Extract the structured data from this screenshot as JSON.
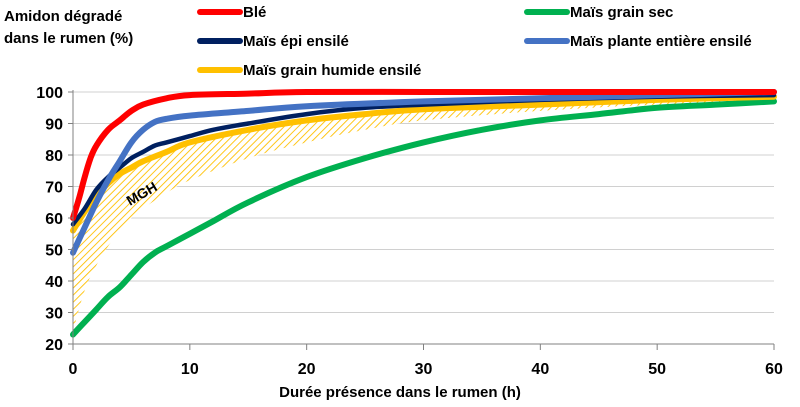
{
  "chart_data": {
    "type": "line",
    "ylabel_line1": "Amidon dégradé",
    "ylabel_line2": "dans le rumen  (%)",
    "xlabel": "Durée présence dans le rumen (h)",
    "xlim": [
      0,
      60
    ],
    "ylim": [
      20,
      100
    ],
    "xticks": [
      0,
      10,
      20,
      30,
      40,
      50,
      60
    ],
    "yticks": [
      20,
      30,
      40,
      50,
      60,
      70,
      80,
      90,
      100
    ],
    "grid": "horizontal",
    "legend_position": "top",
    "annotation": "MGH",
    "series": [
      {
        "name": "Blé",
        "color": "#ff0000",
        "x": [
          0,
          0.5,
          1,
          1.5,
          2,
          3,
          4,
          5,
          6,
          8,
          10,
          15,
          20,
          30,
          40,
          50,
          60
        ],
        "y": [
          60,
          66,
          73,
          79,
          83,
          88,
          91,
          94,
          96,
          98,
          99,
          99.5,
          100,
          100,
          100,
          100,
          100
        ]
      },
      {
        "name": "Maïs grain sec",
        "color": "#00b050",
        "x": [
          0,
          1,
          2,
          3,
          4,
          5,
          6,
          7,
          8,
          10,
          12,
          15,
          20,
          25,
          30,
          35,
          40,
          45,
          50,
          55,
          60
        ],
        "y": [
          23,
          27,
          31,
          35,
          38,
          42,
          46,
          49,
          51,
          55,
          59,
          65,
          73,
          79,
          84,
          88,
          91,
          93,
          95,
          96,
          97
        ]
      },
      {
        "name": "Maïs épi ensilé",
        "color": "#002060",
        "x": [
          0,
          1,
          2,
          3,
          4,
          5,
          6,
          7,
          8,
          10,
          12,
          15,
          20,
          25,
          30,
          40,
          50,
          60
        ],
        "y": [
          58,
          63,
          69,
          73,
          76,
          79,
          81,
          83,
          84,
          86,
          88,
          90,
          93,
          95,
          96,
          97.5,
          98.5,
          99
        ]
      },
      {
        "name": "Maïs grain humide ensilé",
        "color": "#ffc000",
        "x": [
          0,
          1,
          2,
          3,
          4,
          5,
          6,
          8,
          10,
          15,
          20,
          25,
          30,
          40,
          50,
          60
        ],
        "y": [
          56,
          62,
          67,
          71,
          74,
          76,
          78,
          81,
          84,
          88,
          91,
          93,
          94.5,
          96,
          97.5,
          98.5
        ]
      },
      {
        "name": "Maïs plante entière ensilé",
        "color": "#4472c4",
        "x": [
          0,
          1,
          2,
          3,
          4,
          5,
          6,
          7,
          8,
          10,
          15,
          20,
          30,
          40,
          50,
          60
        ],
        "y": [
          49,
          57,
          65,
          72,
          78,
          84,
          88,
          90.5,
          91.5,
          92.5,
          94,
          95.5,
          97,
          98,
          99,
          100
        ]
      }
    ],
    "band": {
      "label": "MGH",
      "color": "#ffc000",
      "x": [
        0,
        1,
        2,
        3,
        4,
        5,
        6,
        8,
        10,
        15,
        20,
        25,
        30,
        40,
        50,
        60
      ],
      "upper": [
        56,
        62,
        67,
        71,
        74,
        76,
        78,
        81,
        84,
        88,
        91,
        93,
        94.5,
        96,
        97.5,
        98.5
      ],
      "lower": [
        24,
        37,
        45,
        51,
        56,
        60,
        63,
        68,
        72,
        79,
        84,
        88,
        91,
        94,
        96,
        97
      ]
    }
  }
}
